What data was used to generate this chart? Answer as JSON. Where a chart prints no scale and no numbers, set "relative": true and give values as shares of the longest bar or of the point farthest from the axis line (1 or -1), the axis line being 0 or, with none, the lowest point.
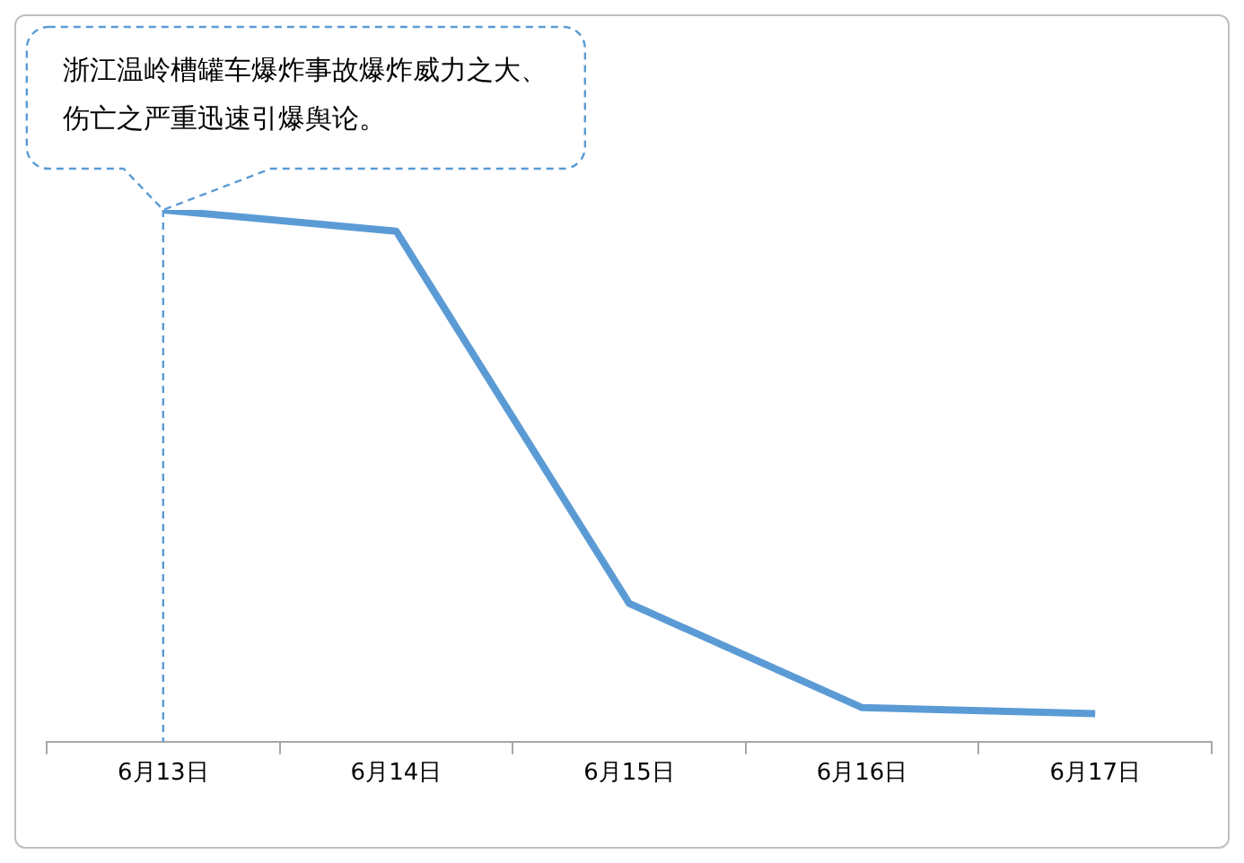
{
  "chart_data": {
    "type": "line",
    "relative": true,
    "categories": [
      "6月13日",
      "6月14日",
      "6月15日",
      "6月16日",
      "6月17日"
    ],
    "series": [
      {
        "color": "#5b9bd5",
        "values": [
          1,
          0.96,
          0.26,
          0.064,
          0.053
        ]
      }
    ],
    "annotations": [
      {
        "text": "浙江温岭槽罐车爆炸事故爆炸威力之大、伤亡之严重迅速引爆舆论。",
        "x": "6月13日",
        "y": 1
      }
    ],
    "ref_lines": [
      {
        "axis": "x",
        "value": "6月13日",
        "color": "#5b9bd5",
        "line_style": "dashed"
      }
    ],
    "marker": "none",
    "grid": false,
    "legend": false
  }
}
